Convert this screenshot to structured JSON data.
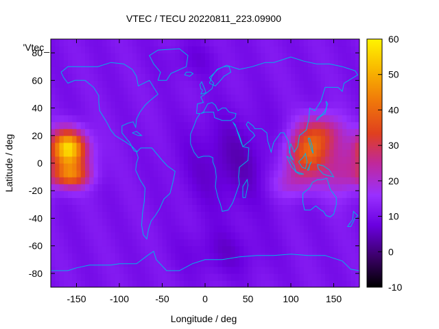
{
  "chart_data": {
    "type": "heatmap",
    "title": "VTEC / TECU 20220811_223.09900",
    "xlabel": "Longitude / deg",
    "ylabel": "Latitude / deg",
    "series_label": "'Vtec_",
    "xlim": [
      -180,
      180
    ],
    "ylim": [
      -90,
      90
    ],
    "xticks": [
      -150,
      -100,
      -50,
      0,
      50,
      100,
      150
    ],
    "yticks": [
      -80,
      -60,
      -40,
      -20,
      0,
      20,
      40,
      60,
      80
    ],
    "colorbar": {
      "range": [
        -10,
        60
      ],
      "ticks": [
        60,
        50,
        40,
        30,
        20,
        10,
        0,
        -10
      ],
      "palette": [
        "#000000",
        "#3a0066",
        "#6a00e0",
        "#9930ff",
        "#c0289a",
        "#e0401e",
        "#f0780a",
        "#f8b400",
        "#fff400"
      ]
    },
    "grid_resolution_deg": [
      5,
      5
    ],
    "features": [
      {
        "region": "central Pacific equatorial anomaly",
        "lon": -158,
        "lat": 12,
        "vtec": 48
      },
      {
        "region": "southern Pacific anomaly crest",
        "lon": -158,
        "lat": -8,
        "vtec": 35
      },
      {
        "region": "Southeast Asia / Indonesia",
        "lon": 118,
        "lat": 5,
        "vtec": 36
      },
      {
        "region": "western Pacific / Philippines",
        "lon": 135,
        "lat": 20,
        "vtec": 30
      },
      {
        "region": "Atlantic / Africa night side",
        "lon": 30,
        "lat": 0,
        "vtec": 5
      },
      {
        "region": "polar background",
        "lon": 0,
        "lat": -75,
        "vtec": 10
      }
    ],
    "background_vtec": 11,
    "grid": false,
    "coastlines": true,
    "coastline_color": "#00b4e6"
  }
}
